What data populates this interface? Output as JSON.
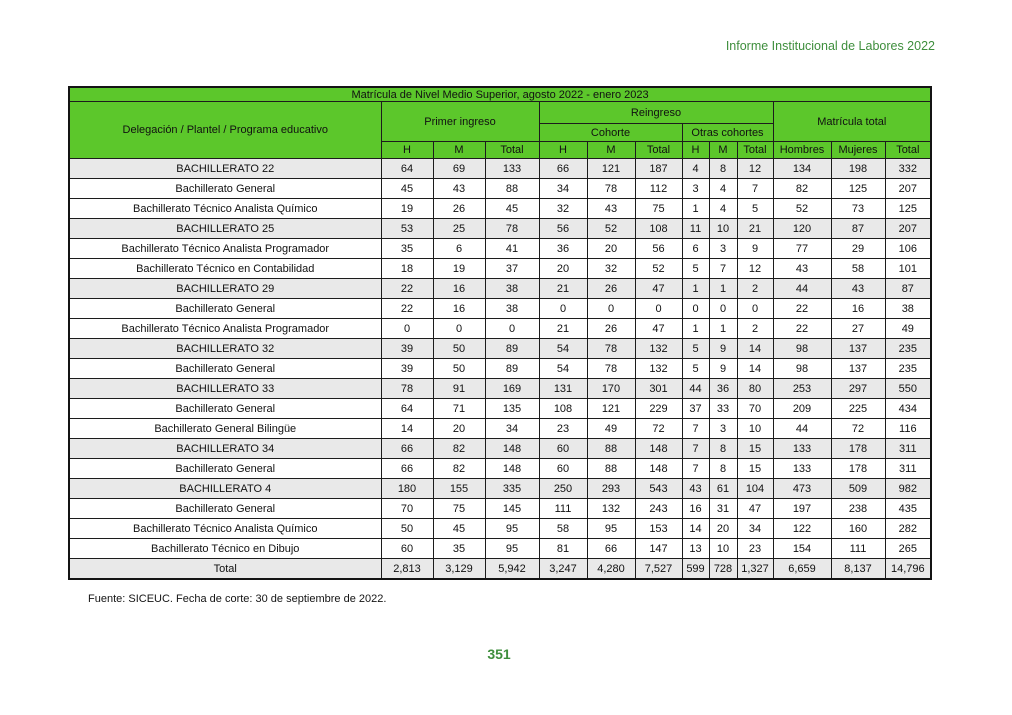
{
  "page": {
    "header_right": "Informe Institucional de Labores 2022",
    "footer_source": "Fuente: SICEUC. Fecha de corte: 30 de septiembre de 2022.",
    "page_number": "351"
  },
  "colors": {
    "table_green": "#5CC72B",
    "heading_text_green": "#3E8E3C",
    "shaded_row": "#E9E9E9",
    "border": "#1c1c1c"
  },
  "table": {
    "title": "Matrícula de Nivel Medio Superior, agosto 2022 - enero 2023",
    "headers": {
      "first_col": "Delegación / Plantel / Programa educativo",
      "primer_ingreso": "Primer ingreso",
      "reingreso": "Reingreso",
      "cohorte": "Cohorte",
      "otras_cohortes": "Otras cohortes",
      "matricula_total": "Matrícula total"
    },
    "sub_headers": [
      "H",
      "M",
      "Total",
      "H",
      "M",
      "Total",
      "H",
      "M",
      "Total",
      "Hombres",
      "Mujeres",
      "Total"
    ],
    "rows": [
      {
        "type": "group",
        "label": "BACHILLERATO 22",
        "values": [
          "64",
          "69",
          "133",
          "66",
          "121",
          "187",
          "4",
          "8",
          "12",
          "134",
          "198",
          "332"
        ]
      },
      {
        "type": "data",
        "label": "Bachillerato General",
        "values": [
          "45",
          "43",
          "88",
          "34",
          "78",
          "112",
          "3",
          "4",
          "7",
          "82",
          "125",
          "207"
        ]
      },
      {
        "type": "data",
        "label": "Bachillerato Técnico Analista Químico",
        "values": [
          "19",
          "26",
          "45",
          "32",
          "43",
          "75",
          "1",
          "4",
          "5",
          "52",
          "73",
          "125"
        ]
      },
      {
        "type": "group",
        "label": "BACHILLERATO 25",
        "values": [
          "53",
          "25",
          "78",
          "56",
          "52",
          "108",
          "11",
          "10",
          "21",
          "120",
          "87",
          "207"
        ]
      },
      {
        "type": "data",
        "label": "Bachillerato Técnico Analista Programador",
        "values": [
          "35",
          "6",
          "41",
          "36",
          "20",
          "56",
          "6",
          "3",
          "9",
          "77",
          "29",
          "106"
        ]
      },
      {
        "type": "data",
        "label": "Bachillerato Técnico en Contabilidad",
        "values": [
          "18",
          "19",
          "37",
          "20",
          "32",
          "52",
          "5",
          "7",
          "12",
          "43",
          "58",
          "101"
        ]
      },
      {
        "type": "group",
        "label": "BACHILLERATO 29",
        "values": [
          "22",
          "16",
          "38",
          "21",
          "26",
          "47",
          "1",
          "1",
          "2",
          "44",
          "43",
          "87"
        ]
      },
      {
        "type": "data",
        "label": "Bachillerato General",
        "values": [
          "22",
          "16",
          "38",
          "0",
          "0",
          "0",
          "0",
          "0",
          "0",
          "22",
          "16",
          "38"
        ]
      },
      {
        "type": "data",
        "label": "Bachillerato Técnico Analista Programador",
        "values": [
          "0",
          "0",
          "0",
          "21",
          "26",
          "47",
          "1",
          "1",
          "2",
          "22",
          "27",
          "49"
        ]
      },
      {
        "type": "group",
        "label": "BACHILLERATO 32",
        "values": [
          "39",
          "50",
          "89",
          "54",
          "78",
          "132",
          "5",
          "9",
          "14",
          "98",
          "137",
          "235"
        ]
      },
      {
        "type": "data",
        "label": "Bachillerato General",
        "values": [
          "39",
          "50",
          "89",
          "54",
          "78",
          "132",
          "5",
          "9",
          "14",
          "98",
          "137",
          "235"
        ]
      },
      {
        "type": "group",
        "label": "BACHILLERATO 33",
        "values": [
          "78",
          "91",
          "169",
          "131",
          "170",
          "301",
          "44",
          "36",
          "80",
          "253",
          "297",
          "550"
        ]
      },
      {
        "type": "data",
        "label": "Bachillerato General",
        "values": [
          "64",
          "71",
          "135",
          "108",
          "121",
          "229",
          "37",
          "33",
          "70",
          "209",
          "225",
          "434"
        ]
      },
      {
        "type": "data",
        "label": "Bachillerato General Bilingüe",
        "values": [
          "14",
          "20",
          "34",
          "23",
          "49",
          "72",
          "7",
          "3",
          "10",
          "44",
          "72",
          "116"
        ]
      },
      {
        "type": "group",
        "label": "BACHILLERATO 34",
        "values": [
          "66",
          "82",
          "148",
          "60",
          "88",
          "148",
          "7",
          "8",
          "15",
          "133",
          "178",
          "311"
        ]
      },
      {
        "type": "data",
        "label": "Bachillerato General",
        "values": [
          "66",
          "82",
          "148",
          "60",
          "88",
          "148",
          "7",
          "8",
          "15",
          "133",
          "178",
          "311"
        ]
      },
      {
        "type": "group",
        "label": "BACHILLERATO 4",
        "values": [
          "180",
          "155",
          "335",
          "250",
          "293",
          "543",
          "43",
          "61",
          "104",
          "473",
          "509",
          "982"
        ]
      },
      {
        "type": "data",
        "label": "Bachillerato General",
        "values": [
          "70",
          "75",
          "145",
          "111",
          "132",
          "243",
          "16",
          "31",
          "47",
          "197",
          "238",
          "435"
        ]
      },
      {
        "type": "data",
        "label": "Bachillerato Técnico Analista Químico",
        "values": [
          "50",
          "45",
          "95",
          "58",
          "95",
          "153",
          "14",
          "20",
          "34",
          "122",
          "160",
          "282"
        ]
      },
      {
        "type": "data",
        "label": "Bachillerato Técnico en Dibujo",
        "values": [
          "60",
          "35",
          "95",
          "81",
          "66",
          "147",
          "13",
          "10",
          "23",
          "154",
          "111",
          "265"
        ]
      },
      {
        "type": "total",
        "label": "Total",
        "values": [
          "2,813",
          "3,129",
          "5,942",
          "3,247",
          "4,280",
          "7,527",
          "599",
          "728",
          "1,327",
          "6,659",
          "8,137",
          "14,796"
        ]
      }
    ]
  }
}
